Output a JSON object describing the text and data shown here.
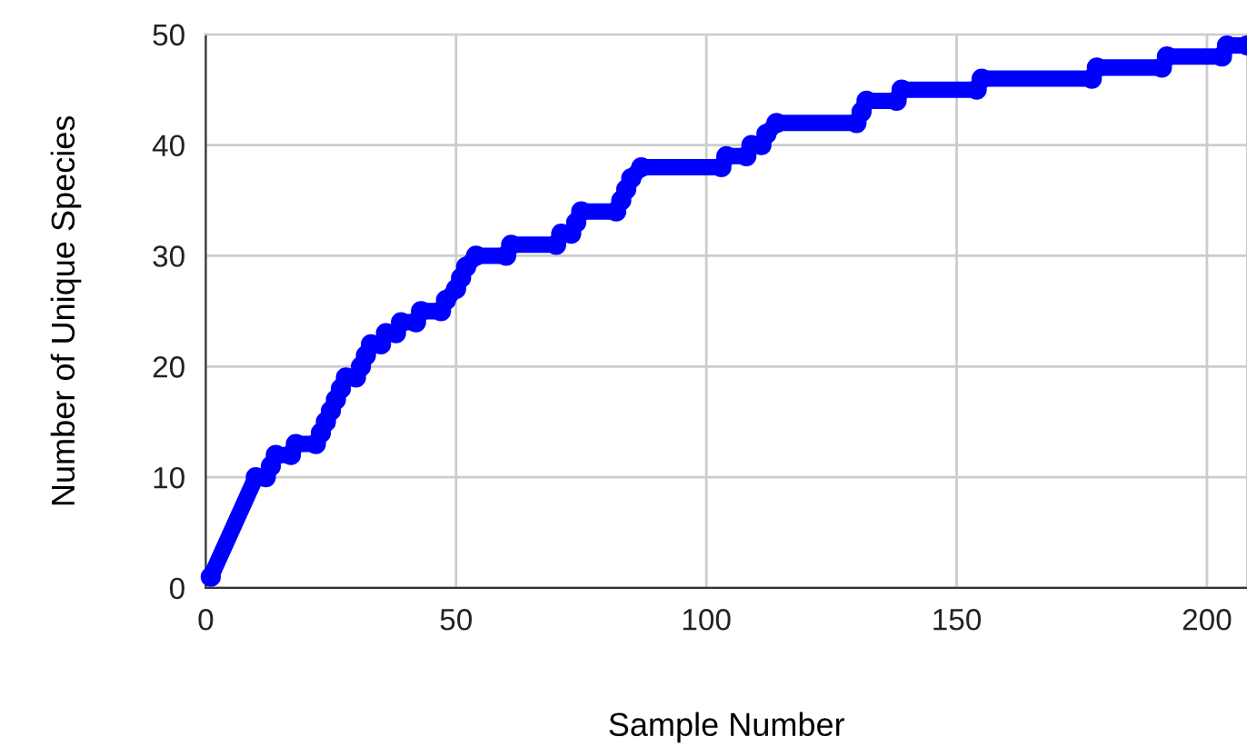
{
  "chart_data": {
    "type": "line",
    "xlabel": "Sample Number",
    "ylabel": "Number of Unique Species",
    "xlim": [
      0,
      208
    ],
    "xticks": [
      0,
      50,
      100,
      150,
      200
    ],
    "ylim": [
      0,
      50
    ],
    "yticks": [
      0,
      10,
      20,
      30,
      40,
      50
    ],
    "grid": true,
    "marker": "circle",
    "line_style": "solid",
    "series": [
      {
        "color": "#0000ff",
        "x": [
          1,
          10,
          12,
          13,
          14,
          17,
          18,
          22,
          23,
          24,
          25,
          26,
          27,
          28,
          30,
          31,
          32,
          33,
          35,
          36,
          38,
          39,
          42,
          43,
          47,
          48,
          50,
          51,
          52,
          54,
          60,
          61,
          70,
          71,
          73,
          74,
          75,
          82,
          83,
          84,
          85,
          87,
          103,
          104,
          108,
          109,
          111,
          112,
          114,
          130,
          131,
          132,
          138,
          139,
          154,
          155,
          177,
          178,
          191,
          192,
          203,
          204,
          208
        ],
        "values": [
          1,
          10,
          10,
          11,
          12,
          12,
          13,
          13,
          14,
          15,
          16,
          17,
          18,
          19,
          19,
          20,
          21,
          22,
          22,
          23,
          23,
          24,
          24,
          25,
          25,
          26,
          27,
          28,
          29,
          30,
          30,
          31,
          31,
          32,
          32,
          33,
          34,
          34,
          35,
          36,
          37,
          38,
          38,
          39,
          39,
          40,
          40,
          41,
          42,
          42,
          43,
          44,
          44,
          45,
          45,
          46,
          46,
          47,
          47,
          48,
          48,
          49,
          49
        ]
      }
    ]
  }
}
